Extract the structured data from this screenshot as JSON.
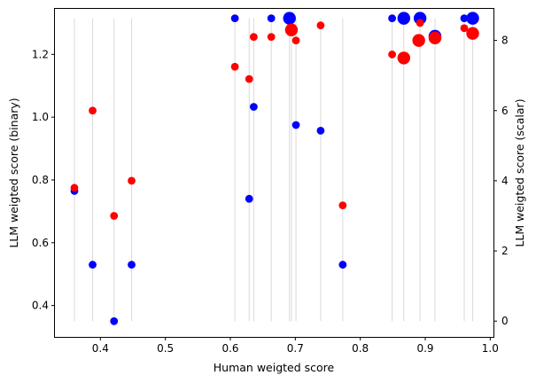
{
  "chart_data": {
    "type": "scatter",
    "title": "",
    "xlabel": "Human weigted score",
    "ylabel": "LLM weigted score (binary)",
    "y2label": "LLM weigted score (scalar)",
    "xlim": [
      0.33,
      1.005
    ],
    "ylim": [
      0.3,
      1.345
    ],
    "y2lim": [
      -0.45,
      8.9
    ],
    "xticks": [
      "0.4",
      "0.5",
      "0.6",
      "0.7",
      "0.8",
      "0.9",
      "1.0"
    ],
    "yticks": [
      "0.4",
      "0.6",
      "0.8",
      "1.0",
      "1.2"
    ],
    "y2ticks": [
      "0",
      "2",
      "4",
      "6",
      "8"
    ],
    "grid": false,
    "vertical_reference_lines": {
      "color": "lightgray",
      "y_range_binary": [
        0.35,
        1.315
      ],
      "x": [
        0.36,
        0.388,
        0.421,
        0.448,
        0.607,
        0.629,
        0.636,
        0.663,
        0.691,
        0.694,
        0.701,
        0.739,
        0.773,
        0.849,
        0.867,
        0.892,
        0.915,
        0.96,
        0.973
      ]
    },
    "series": [
      {
        "axis": "left",
        "color": "#0000ff",
        "points": [
          {
            "x": 0.36,
            "y": 0.765,
            "size": 1
          },
          {
            "x": 0.388,
            "y": 0.53,
            "size": 1
          },
          {
            "x": 0.421,
            "y": 0.35,
            "size": 1
          },
          {
            "x": 0.448,
            "y": 0.53,
            "size": 1
          },
          {
            "x": 0.607,
            "y": 1.315,
            "size": 1
          },
          {
            "x": 0.629,
            "y": 0.74,
            "size": 1
          },
          {
            "x": 0.636,
            "y": 1.033,
            "size": 1
          },
          {
            "x": 0.663,
            "y": 1.315,
            "size": 1
          },
          {
            "x": 0.691,
            "y": 1.315,
            "size": 3
          },
          {
            "x": 0.701,
            "y": 0.975,
            "size": 1
          },
          {
            "x": 0.739,
            "y": 0.957,
            "size": 1
          },
          {
            "x": 0.773,
            "y": 0.53,
            "size": 1
          },
          {
            "x": 0.849,
            "y": 1.315,
            "size": 1
          },
          {
            "x": 0.867,
            "y": 1.315,
            "size": 3
          },
          {
            "x": 0.892,
            "y": 1.315,
            "size": 3
          },
          {
            "x": 0.915,
            "y": 1.258,
            "size": 3
          },
          {
            "x": 0.96,
            "y": 1.315,
            "size": 1
          },
          {
            "x": 0.973,
            "y": 1.315,
            "size": 3
          }
        ]
      },
      {
        "axis": "right",
        "color": "#ff0000",
        "points": [
          {
            "x": 0.36,
            "y": 3.8,
            "size": 1
          },
          {
            "x": 0.388,
            "y": 6.0,
            "size": 1
          },
          {
            "x": 0.421,
            "y": 3.0,
            "size": 1
          },
          {
            "x": 0.448,
            "y": 4.0,
            "size": 1
          },
          {
            "x": 0.607,
            "y": 7.25,
            "size": 1
          },
          {
            "x": 0.629,
            "y": 6.9,
            "size": 1
          },
          {
            "x": 0.636,
            "y": 8.1,
            "size": 1
          },
          {
            "x": 0.663,
            "y": 8.1,
            "size": 1
          },
          {
            "x": 0.694,
            "y": 8.3,
            "size": 3
          },
          {
            "x": 0.701,
            "y": 8.0,
            "size": 1
          },
          {
            "x": 0.739,
            "y": 8.43,
            "size": 1
          },
          {
            "x": 0.773,
            "y": 3.3,
            "size": 1
          },
          {
            "x": 0.849,
            "y": 7.6,
            "size": 1
          },
          {
            "x": 0.867,
            "y": 7.5,
            "size": 3
          },
          {
            "x": 0.89,
            "y": 8.0,
            "size": 3
          },
          {
            "x": 0.892,
            "y": 8.5,
            "size": 1
          },
          {
            "x": 0.915,
            "y": 8.07,
            "size": 3
          },
          {
            "x": 0.96,
            "y": 8.35,
            "size": 1
          },
          {
            "x": 0.973,
            "y": 8.2,
            "size": 3
          }
        ]
      }
    ]
  }
}
